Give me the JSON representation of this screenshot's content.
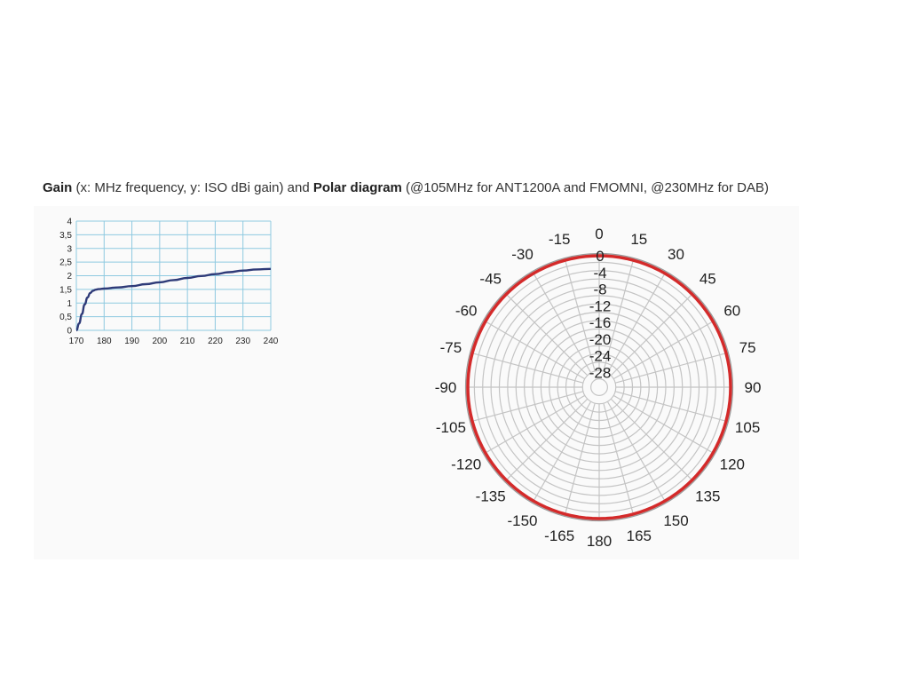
{
  "caption": {
    "gain_label": "Gain",
    "gain_desc": " (x: MHz frequency, y: ISO dBi gain) and ",
    "polar_label": "Polar diagram",
    "polar_desc": " (@105MHz for ANT1200A and FMOMNI, @230MHz for DAB)"
  },
  "colors": {
    "gain_line": "#2e3a78",
    "gain_grid": "#8ec9e0",
    "polar_grid": "#c4c4c4",
    "polar_trace": "#d42a2a"
  },
  "chart_data": [
    {
      "type": "line",
      "title": "",
      "xlabel": "",
      "ylabel": "",
      "xlim": [
        170,
        240
      ],
      "ylim": [
        0,
        4
      ],
      "x_ticks": [
        "170",
        "180",
        "190",
        "200",
        "210",
        "220",
        "230",
        "240"
      ],
      "y_ticks": [
        "0",
        "0,5",
        "1",
        "1,5",
        "2",
        "2,5",
        "3",
        "3,5",
        "4"
      ],
      "grid": true,
      "series": [
        {
          "x": [
            170,
            171,
            172,
            173,
            174,
            175,
            176,
            177,
            178,
            180,
            185,
            190,
            195,
            200,
            205,
            210,
            215,
            220,
            225,
            230,
            235,
            240
          ],
          "y": [
            0,
            0.25,
            0.6,
            0.95,
            1.2,
            1.37,
            1.45,
            1.49,
            1.51,
            1.53,
            1.57,
            1.62,
            1.69,
            1.76,
            1.84,
            1.92,
            1.99,
            2.06,
            2.13,
            2.19,
            2.23,
            2.25
          ]
        }
      ]
    },
    {
      "type": "polar",
      "title": "",
      "angle_labels": [
        "0",
        "15",
        "30",
        "45",
        "60",
        "75",
        "90",
        "105",
        "120",
        "135",
        "150",
        "165",
        "180",
        "-165",
        "-150",
        "-135",
        "-120",
        "-105",
        "-90",
        "-75",
        "-60",
        "-45",
        "-30",
        "-15"
      ],
      "radial_labels": [
        "0",
        "-4",
        "-8",
        "-12",
        "-16",
        "-20",
        "-24",
        "-28"
      ],
      "rlim": [
        -32,
        0
      ],
      "grid": true,
      "series": [
        {
          "angles": [
            0,
            360
          ],
          "values": [
            0,
            0
          ]
        }
      ]
    }
  ]
}
